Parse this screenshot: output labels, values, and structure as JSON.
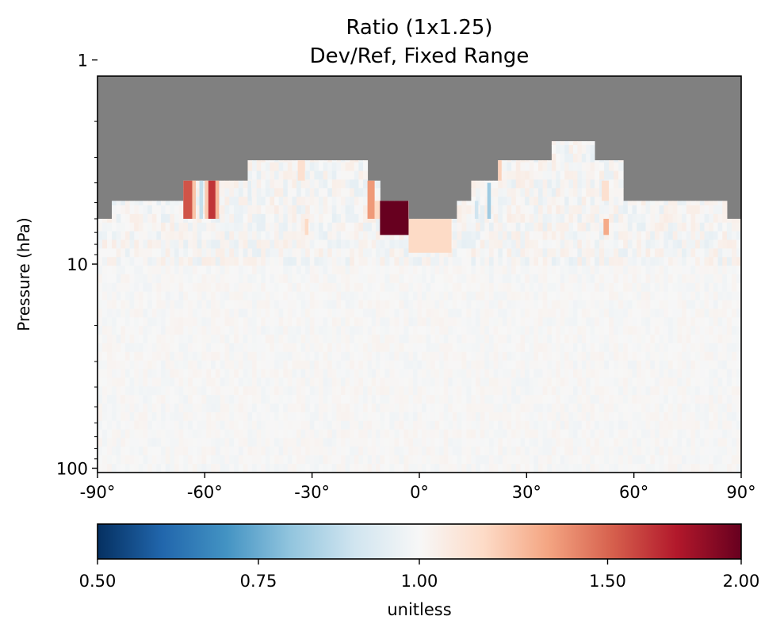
{
  "chart_data": {
    "type": "heatmap",
    "title_lines": [
      "Ratio (1x1.25)",
      "Dev/Ref, Fixed Range"
    ],
    "ylabel": "Pressure (hPa)",
    "xlabel": "",
    "x_range": [
      -90,
      90
    ],
    "y_range": [
      1.2,
      105
    ],
    "y_scale": "log",
    "y_inverted": true,
    "x_ticks": [
      -90,
      -60,
      -30,
      0,
      30,
      60,
      90
    ],
    "x_tick_labels": [
      "-90°",
      "-60°",
      "-30°",
      "0°",
      "30°",
      "60°",
      "90°"
    ],
    "y_ticks": [
      1,
      10,
      100
    ],
    "y_tick_labels": [
      "1",
      "10",
      "100"
    ],
    "missing_color": "#808080",
    "colorbar": {
      "label": "unitless",
      "range": [
        0.5,
        2.0
      ],
      "ticks": [
        0.5,
        0.75,
        1.0,
        1.5,
        2.0
      ],
      "tick_labels": [
        "0.50",
        "0.75",
        "1.00",
        "1.50",
        "2.00"
      ],
      "stops": [
        "#053061",
        "#2166ac",
        "#4393c3",
        "#92c5de",
        "#d1e5f0",
        "#f7f7f7",
        "#fddbc7",
        "#f4a582",
        "#d6604d",
        "#b2182b",
        "#67001f"
      ]
    },
    "data_top_boundary": [
      {
        "lat_start": -90.0,
        "lat_end": -86.0,
        "top_hPa": 6.0
      },
      {
        "lat_start": -86.0,
        "lat_end": -66.0,
        "top_hPa": 4.9
      },
      {
        "lat_start": -66.0,
        "lat_end": -48.0,
        "top_hPa": 3.9
      },
      {
        "lat_start": -48.0,
        "lat_end": -14.5,
        "top_hPa": 3.1
      },
      {
        "lat_start": -14.5,
        "lat_end": -11.0,
        "top_hPa": 3.9
      },
      {
        "lat_start": -11.0,
        "lat_end": -3.0,
        "top_hPa": 4.9
      },
      {
        "lat_start": -3.0,
        "lat_end": 10.5,
        "top_hPa": 6.0
      },
      {
        "lat_start": 10.5,
        "lat_end": 14.5,
        "top_hPa": 4.9
      },
      {
        "lat_start": 14.5,
        "lat_end": 22.0,
        "top_hPa": 3.9
      },
      {
        "lat_start": 22.0,
        "lat_end": 37.0,
        "top_hPa": 3.1
      },
      {
        "lat_start": 37.0,
        "lat_end": 49.0,
        "top_hPa": 2.5
      },
      {
        "lat_start": 49.0,
        "lat_end": 57.0,
        "top_hPa": 3.1
      },
      {
        "lat_start": 57.0,
        "lat_end": 86.0,
        "top_hPa": 4.9
      },
      {
        "lat_start": 86.0,
        "lat_end": 90.0,
        "top_hPa": 6.0
      }
    ],
    "highlight_cells": [
      {
        "lat_start": -66.0,
        "lat_end": -63.5,
        "p_top": 3.9,
        "p_bottom": 6.0,
        "ratio": 1.55
      },
      {
        "lat_start": -63.5,
        "lat_end": -62.5,
        "p_top": 3.9,
        "p_bottom": 6.0,
        "ratio": 1.22
      },
      {
        "lat_start": -61.5,
        "lat_end": -60.5,
        "p_top": 3.9,
        "p_bottom": 6.0,
        "ratio": 0.88
      },
      {
        "lat_start": -60.0,
        "lat_end": -59.0,
        "p_top": 3.9,
        "p_bottom": 6.0,
        "ratio": 1.2
      },
      {
        "lat_start": -59.0,
        "lat_end": -57.0,
        "p_top": 3.9,
        "p_bottom": 6.0,
        "ratio": 1.65
      },
      {
        "lat_start": -57.0,
        "lat_end": -56.0,
        "p_top": 3.9,
        "p_bottom": 6.0,
        "ratio": 1.25
      },
      {
        "lat_start": -14.5,
        "lat_end": -12.5,
        "p_top": 3.9,
        "p_bottom": 6.0,
        "ratio": 1.35
      },
      {
        "lat_start": -12.5,
        "lat_end": -11.0,
        "p_top": 4.9,
        "p_bottom": 6.0,
        "ratio": 1.15
      },
      {
        "lat_start": -11.0,
        "lat_end": -3.0,
        "p_top": 4.9,
        "p_bottom": 7.2,
        "ratio": 2.0
      },
      {
        "lat_start": -3.0,
        "lat_end": 9.0,
        "p_top": 6.0,
        "p_bottom": 8.8,
        "ratio": 1.15
      },
      {
        "lat_start": 15.5,
        "lat_end": 16.5,
        "p_top": 4.9,
        "p_bottom": 6.0,
        "ratio": 0.9
      },
      {
        "lat_start": 19.0,
        "lat_end": 20.0,
        "p_top": 4.0,
        "p_bottom": 6.0,
        "ratio": 0.82
      },
      {
        "lat_start": 22.0,
        "lat_end": 23.0,
        "p_top": 3.1,
        "p_bottom": 3.9,
        "ratio": 1.18
      },
      {
        "lat_start": 51.0,
        "lat_end": 53.0,
        "p_top": 3.9,
        "p_bottom": 4.9,
        "ratio": 1.12
      },
      {
        "lat_start": 51.5,
        "lat_end": 53.0,
        "p_top": 6.0,
        "p_bottom": 7.2,
        "ratio": 1.3
      },
      {
        "lat_start": -34.0,
        "lat_end": -32.0,
        "p_top": 3.1,
        "p_bottom": 3.9,
        "ratio": 1.12
      },
      {
        "lat_start": -48.0,
        "lat_end": -47.0,
        "p_top": 3.9,
        "p_bottom": 4.9,
        "ratio": 0.95
      },
      {
        "lat_start": -32.0,
        "lat_end": -31.0,
        "p_top": 6.0,
        "p_bottom": 7.2,
        "ratio": 1.15
      }
    ]
  }
}
